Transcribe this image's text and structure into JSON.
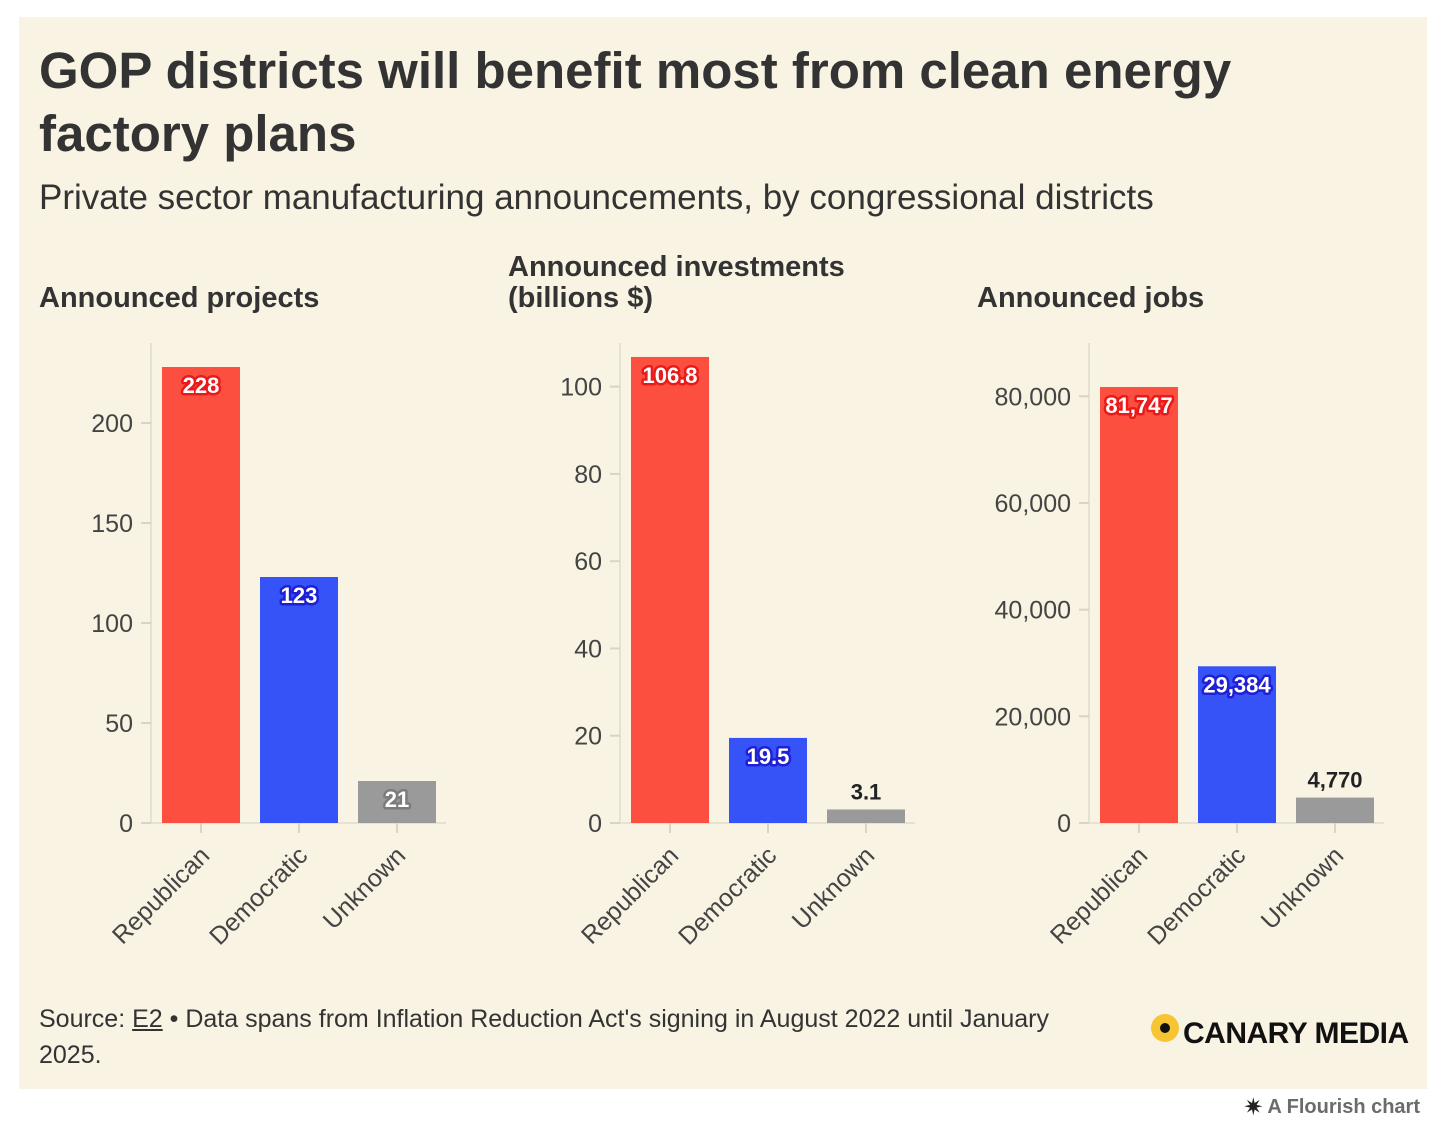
{
  "header": {
    "title": "GOP districts will benefit most from clean energy factory plans",
    "subtitle": "Private sector manufacturing announcements, by congressional districts"
  },
  "colors": {
    "republican": "#fd4f3f",
    "democratic": "#3653f7",
    "unknown": "#9a9a9a",
    "republican_label_outline": "#e81a1a",
    "democratic_label_outline": "#1f1fd6",
    "unknown_label_outline": "#7c7c7c",
    "background": "#f8f3e2"
  },
  "chart_data": [
    {
      "type": "bar",
      "title": [
        "Announced projects"
      ],
      "categories": [
        "Republican",
        "Democratic",
        "Unknown"
      ],
      "values": [
        228,
        123,
        21
      ],
      "value_labels": [
        "228",
        "123",
        "21"
      ],
      "ylim": [
        0,
        240
      ],
      "yticks": [
        0,
        50,
        100,
        150,
        200
      ],
      "ytick_labels": [
        "0",
        "50",
        "100",
        "150",
        "200"
      ]
    },
    {
      "type": "bar",
      "title": [
        "Announced investments",
        "(billions $)"
      ],
      "categories": [
        "Republican",
        "Democratic",
        "Unknown"
      ],
      "values": [
        106.8,
        19.5,
        3.1
      ],
      "value_labels": [
        "106.8",
        "19.5",
        "3.1"
      ],
      "ylim": [
        0,
        110
      ],
      "yticks": [
        0,
        20,
        40,
        60,
        80,
        100
      ],
      "ytick_labels": [
        "0",
        "20",
        "40",
        "60",
        "80",
        "100"
      ]
    },
    {
      "type": "bar",
      "title": [
        "Announced jobs"
      ],
      "categories": [
        "Republican",
        "Democratic",
        "Unknown"
      ],
      "values": [
        81747,
        29384,
        4770
      ],
      "value_labels": [
        "81,747",
        "29,384",
        "4,770"
      ],
      "ylim": [
        0,
        90000
      ],
      "yticks": [
        0,
        20000,
        40000,
        60000,
        80000
      ],
      "ytick_labels": [
        "0",
        "20,000",
        "40,000",
        "60,000",
        "80,000"
      ]
    }
  ],
  "footer": {
    "source_prefix": "Source: ",
    "source_link": "E2",
    "source_rest": " • Data spans from Inflation Reduction Act's signing in August 2022 until January 2025."
  },
  "brand": {
    "name": "CANARY MEDIA",
    "credit": "A Flourish chart",
    "credit_icon": "flourish-star-icon"
  }
}
